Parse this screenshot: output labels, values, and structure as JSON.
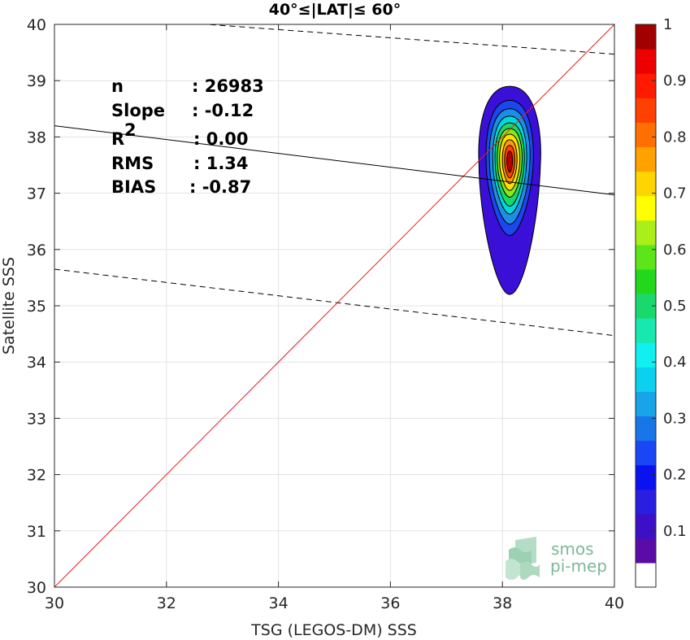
{
  "chart_data": {
    "type": "scatter",
    "title": "40°≤|LAT|≤ 60°",
    "xlabel": "TSG (LEGOS-DM) SSS",
    "ylabel": "Satellite SSS",
    "xlim": [
      30,
      40
    ],
    "ylim": [
      30,
      40
    ],
    "xticks": [
      "30",
      "32",
      "34",
      "36",
      "38",
      "40"
    ],
    "yticks": [
      "30",
      "31",
      "32",
      "33",
      "34",
      "35",
      "36",
      "37",
      "38",
      "39",
      "40"
    ],
    "grid": true,
    "stats": [
      {
        "label": "n",
        "value": ": 26983"
      },
      {
        "label": "Slope",
        "value": ": -0.12"
      },
      {
        "label": "R",
        "sup": "2",
        "value": ": 0.00"
      },
      {
        "label": "RMS",
        "value": ": 1.34"
      },
      {
        "label": "BIAS",
        "value": ": -0.87"
      }
    ],
    "lines": {
      "identity": {
        "x": [
          30,
          40
        ],
        "y": [
          30,
          40
        ],
        "color": "#e8201c"
      },
      "regression": {
        "x": [
          30,
          40
        ],
        "y": [
          38.2,
          36.97
        ],
        "color": "#000000"
      },
      "upper_bound": {
        "x": [
          30,
          40
        ],
        "y": [
          40.2,
          39.47
        ],
        "color": "#000000",
        "style": "dashed"
      },
      "lower_bound": {
        "x": [
          30,
          40
        ],
        "y": [
          35.65,
          34.47
        ],
        "color": "#000000",
        "style": "dashed"
      }
    },
    "density": {
      "center_x": 38.13,
      "center_y": 37.55,
      "contour_levels": [
        {
          "level": 0.05,
          "rx": 0.55,
          "ry_top": 1.35,
          "ry_bottom": 2.35,
          "color": "#3a0fd8"
        },
        {
          "level": 0.15,
          "rx": 0.42,
          "ry_top": 1.1,
          "ry_bottom": 1.3,
          "color": "#1a47f0"
        },
        {
          "level": 0.25,
          "rx": 0.36,
          "ry_top": 0.95,
          "ry_bottom": 1.1,
          "color": "#1d8ee8"
        },
        {
          "level": 0.35,
          "rx": 0.3,
          "ry_top": 0.82,
          "ry_bottom": 0.92,
          "color": "#00d9d9"
        },
        {
          "level": 0.45,
          "rx": 0.26,
          "ry_top": 0.7,
          "ry_bottom": 0.78,
          "color": "#18d86a"
        },
        {
          "level": 0.55,
          "rx": 0.22,
          "ry_top": 0.6,
          "ry_bottom": 0.62,
          "color": "#8ae81a"
        },
        {
          "level": 0.65,
          "rx": 0.18,
          "ry_top": 0.5,
          "ry_bottom": 0.5,
          "color": "#ffe100"
        },
        {
          "level": 0.75,
          "rx": 0.13,
          "ry_top": 0.4,
          "ry_bottom": 0.38,
          "color": "#ff9a00"
        },
        {
          "level": 0.85,
          "rx": 0.09,
          "ry_top": 0.3,
          "ry_bottom": 0.28,
          "color": "#ff4500"
        },
        {
          "level": 0.95,
          "rx": 0.05,
          "ry_top": 0.2,
          "ry_bottom": 0.18,
          "color": "#b80000"
        }
      ]
    },
    "colorbar": {
      "range": [
        0,
        1
      ],
      "ticks": [
        "0.1",
        "0.2",
        "0.3",
        "0.4",
        "0.5",
        "0.6",
        "0.7",
        "0.8",
        "0.9",
        "1"
      ],
      "colors": [
        "#ffffff",
        "#5a0ba8",
        "#3d10c8",
        "#2a1ee0",
        "#0b12f0",
        "#1a46f5",
        "#1976e8",
        "#18a4e8",
        "#0bd0f0",
        "#10f0f0",
        "#16e8b0",
        "#19d96d",
        "#22d81c",
        "#5ce61a",
        "#aaee1a",
        "#ffff00",
        "#ffd500",
        "#ffa200",
        "#ff7000",
        "#ff4000",
        "#ff1a00",
        "#ef0000",
        "#a20000"
      ]
    }
  },
  "logo": {
    "line1": "smos",
    "line2": "pi-mep"
  }
}
